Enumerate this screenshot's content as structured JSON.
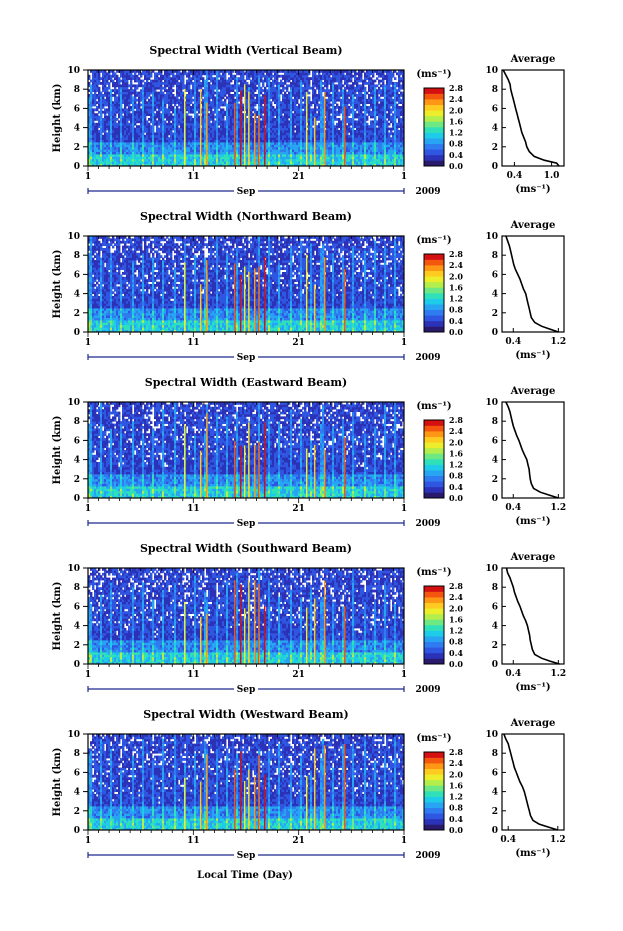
{
  "page": {
    "xlabel": "Local Time (Day)"
  },
  "colormap": [
    "#2a1a6e",
    "#2c32b8",
    "#2f56e0",
    "#2f7bf0",
    "#27a4f2",
    "#1ecbe8",
    "#2fe0b8",
    "#6ee882",
    "#b4ee4c",
    "#ecee2c",
    "#ffcb20",
    "#ff9614",
    "#f4560e",
    "#d41010"
  ],
  "chart_data": [
    {
      "type": "heatmap",
      "title": "Spectral Width (Vertical Beam)",
      "ylabel": "Height (km)",
      "ylim": [
        0,
        10
      ],
      "yticks": [
        "0",
        "2",
        "4",
        "6",
        "8",
        "10"
      ],
      "xlim": [
        1,
        31
      ],
      "xticks": [
        "1",
        "11",
        "21",
        "1"
      ],
      "month": "Sep",
      "year": "2009",
      "colorbar": {
        "unit": "(ms⁻¹)",
        "range": [
          0.0,
          2.8
        ],
        "labels": [
          "0.0",
          "0.4",
          "0.8",
          "1.2",
          "1.6",
          "2.0",
          "2.4",
          "2.8"
        ]
      },
      "average": {
        "title": "Average",
        "xlabel": "(ms⁻¹)",
        "xticks": [
          "0.4",
          "1.0"
        ],
        "xlim": [
          0.2,
          1.2
        ],
        "profile": [
          [
            1.12,
            0
          ],
          [
            1.08,
            0.3
          ],
          [
            0.88,
            0.6
          ],
          [
            0.72,
            1
          ],
          [
            0.64,
            1.5
          ],
          [
            0.6,
            2
          ],
          [
            0.58,
            2.5
          ],
          [
            0.55,
            3
          ],
          [
            0.52,
            3.5
          ],
          [
            0.5,
            4
          ],
          [
            0.48,
            4.5
          ],
          [
            0.46,
            5
          ],
          [
            0.44,
            5.5
          ],
          [
            0.42,
            6
          ],
          [
            0.4,
            6.5
          ],
          [
            0.38,
            7
          ],
          [
            0.36,
            7.5
          ],
          [
            0.34,
            8
          ],
          [
            0.33,
            8.5
          ],
          [
            0.3,
            9
          ],
          [
            0.26,
            9.5
          ],
          [
            0.22,
            10
          ]
        ]
      }
    },
    {
      "type": "heatmap",
      "title": "Spectral Width (Northward Beam)",
      "ylabel": "Height (km)",
      "ylim": [
        0,
        10
      ],
      "yticks": [
        "0",
        "2",
        "4",
        "6",
        "8",
        "10"
      ],
      "xlim": [
        1,
        31
      ],
      "xticks": [
        "1",
        "11",
        "21",
        "1"
      ],
      "month": "Sep",
      "year": "2009",
      "colorbar": {
        "unit": "(ms⁻¹)",
        "range": [
          0.0,
          2.8
        ],
        "labels": [
          "0.0",
          "0.4",
          "0.8",
          "1.2",
          "1.6",
          "2.0",
          "2.4",
          "2.8"
        ]
      },
      "average": {
        "title": "Average",
        "xlabel": "(ms⁻¹)",
        "xticks": [
          "0.4",
          "1.2"
        ],
        "xlim": [
          0.2,
          1.3
        ],
        "profile": [
          [
            1.2,
            0
          ],
          [
            1.05,
            0.3
          ],
          [
            0.9,
            0.6
          ],
          [
            0.78,
            1
          ],
          [
            0.72,
            1.5
          ],
          [
            0.7,
            2
          ],
          [
            0.68,
            2.5
          ],
          [
            0.66,
            3
          ],
          [
            0.64,
            3.5
          ],
          [
            0.62,
            4
          ],
          [
            0.58,
            4.5
          ],
          [
            0.55,
            5
          ],
          [
            0.52,
            5.5
          ],
          [
            0.48,
            6
          ],
          [
            0.44,
            6.5
          ],
          [
            0.41,
            7
          ],
          [
            0.39,
            7.5
          ],
          [
            0.37,
            8
          ],
          [
            0.35,
            8.5
          ],
          [
            0.33,
            9
          ],
          [
            0.3,
            9.5
          ],
          [
            0.27,
            10
          ]
        ]
      }
    },
    {
      "type": "heatmap",
      "title": "Spectral Width (Eastward Beam)",
      "ylabel": "Height (km)",
      "ylim": [
        0,
        10
      ],
      "yticks": [
        "0",
        "2",
        "4",
        "6",
        "8",
        "10"
      ],
      "xlim": [
        1,
        31
      ],
      "xticks": [
        "1",
        "11",
        "21",
        "1"
      ],
      "month": "Sep",
      "year": "2009",
      "colorbar": {
        "unit": "(ms⁻¹)",
        "range": [
          0.0,
          2.8
        ],
        "labels": [
          "0.0",
          "0.4",
          "0.8",
          "1.2",
          "1.6",
          "2.0",
          "2.4",
          "2.8"
        ]
      },
      "average": {
        "title": "Average",
        "xlabel": "(ms⁻¹)",
        "xticks": [
          "0.4",
          "1.2"
        ],
        "xlim": [
          0.2,
          1.3
        ],
        "profile": [
          [
            1.2,
            0
          ],
          [
            1.04,
            0.3
          ],
          [
            0.88,
            0.6
          ],
          [
            0.76,
            1
          ],
          [
            0.72,
            1.5
          ],
          [
            0.7,
            2
          ],
          [
            0.69,
            2.5
          ],
          [
            0.68,
            3
          ],
          [
            0.66,
            3.5
          ],
          [
            0.64,
            4
          ],
          [
            0.6,
            4.5
          ],
          [
            0.56,
            5
          ],
          [
            0.53,
            5.5
          ],
          [
            0.5,
            6
          ],
          [
            0.46,
            6.5
          ],
          [
            0.43,
            7
          ],
          [
            0.4,
            7.5
          ],
          [
            0.38,
            8
          ],
          [
            0.36,
            8.5
          ],
          [
            0.34,
            9
          ],
          [
            0.31,
            9.5
          ],
          [
            0.27,
            10
          ]
        ]
      }
    },
    {
      "type": "heatmap",
      "title": "Spectral Width (Southward Beam)",
      "ylabel": "Height (km)",
      "ylim": [
        0,
        10
      ],
      "yticks": [
        "0",
        "2",
        "4",
        "6",
        "8",
        "10"
      ],
      "xlim": [
        1,
        31
      ],
      "xticks": [
        "1",
        "11",
        "21",
        "1"
      ],
      "month": "Sep",
      "year": "2009",
      "colorbar": {
        "unit": "(ms⁻¹)",
        "range": [
          0.0,
          2.8
        ],
        "labels": [
          "0.0",
          "0.4",
          "0.8",
          "1.2",
          "1.6",
          "2.0",
          "2.4",
          "2.8"
        ]
      },
      "average": {
        "title": "Average",
        "xlabel": "(ms⁻¹)",
        "xticks": [
          "0.4",
          "1.2"
        ],
        "xlim": [
          0.2,
          1.3
        ],
        "profile": [
          [
            1.22,
            0
          ],
          [
            1.05,
            0.3
          ],
          [
            0.9,
            0.6
          ],
          [
            0.78,
            1
          ],
          [
            0.74,
            1.5
          ],
          [
            0.72,
            2
          ],
          [
            0.7,
            2.5
          ],
          [
            0.69,
            3
          ],
          [
            0.67,
            3.5
          ],
          [
            0.65,
            4
          ],
          [
            0.62,
            4.5
          ],
          [
            0.58,
            5
          ],
          [
            0.55,
            5.5
          ],
          [
            0.52,
            6
          ],
          [
            0.48,
            6.5
          ],
          [
            0.45,
            7
          ],
          [
            0.42,
            7.5
          ],
          [
            0.4,
            8
          ],
          [
            0.37,
            8.5
          ],
          [
            0.34,
            9
          ],
          [
            0.3,
            9.5
          ],
          [
            0.28,
            10
          ]
        ]
      }
    },
    {
      "type": "heatmap",
      "title": "Spectral Width (Westward Beam)",
      "ylabel": "Height (km)",
      "ylim": [
        0,
        10
      ],
      "yticks": [
        "0",
        "2",
        "4",
        "6",
        "8",
        "10"
      ],
      "xlim": [
        1,
        31
      ],
      "xticks": [
        "1",
        "11",
        "21",
        "1"
      ],
      "month": "Sep",
      "year": "2009",
      "colorbar": {
        "unit": "(ms⁻¹)",
        "range": [
          0.0,
          2.8
        ],
        "labels": [
          "0.0",
          "0.4",
          "0.8",
          "1.2",
          "1.6",
          "2.0",
          "2.4",
          "2.8"
        ]
      },
      "average": {
        "title": "Average",
        "xlabel": "(ms⁻¹)",
        "xticks": [
          "0.4",
          "1.2"
        ],
        "xlim": [
          0.3,
          1.3
        ],
        "profile": [
          [
            1.2,
            0
          ],
          [
            1.05,
            0.3
          ],
          [
            0.9,
            0.6
          ],
          [
            0.8,
            1
          ],
          [
            0.76,
            1.5
          ],
          [
            0.74,
            2
          ],
          [
            0.72,
            2.5
          ],
          [
            0.7,
            3
          ],
          [
            0.68,
            3.5
          ],
          [
            0.66,
            4
          ],
          [
            0.63,
            4.5
          ],
          [
            0.59,
            5
          ],
          [
            0.56,
            5.5
          ],
          [
            0.53,
            6
          ],
          [
            0.5,
            6.5
          ],
          [
            0.48,
            7
          ],
          [
            0.46,
            7.5
          ],
          [
            0.44,
            8
          ],
          [
            0.42,
            8.5
          ],
          [
            0.4,
            9
          ],
          [
            0.36,
            9.5
          ],
          [
            0.33,
            10
          ]
        ]
      }
    }
  ]
}
